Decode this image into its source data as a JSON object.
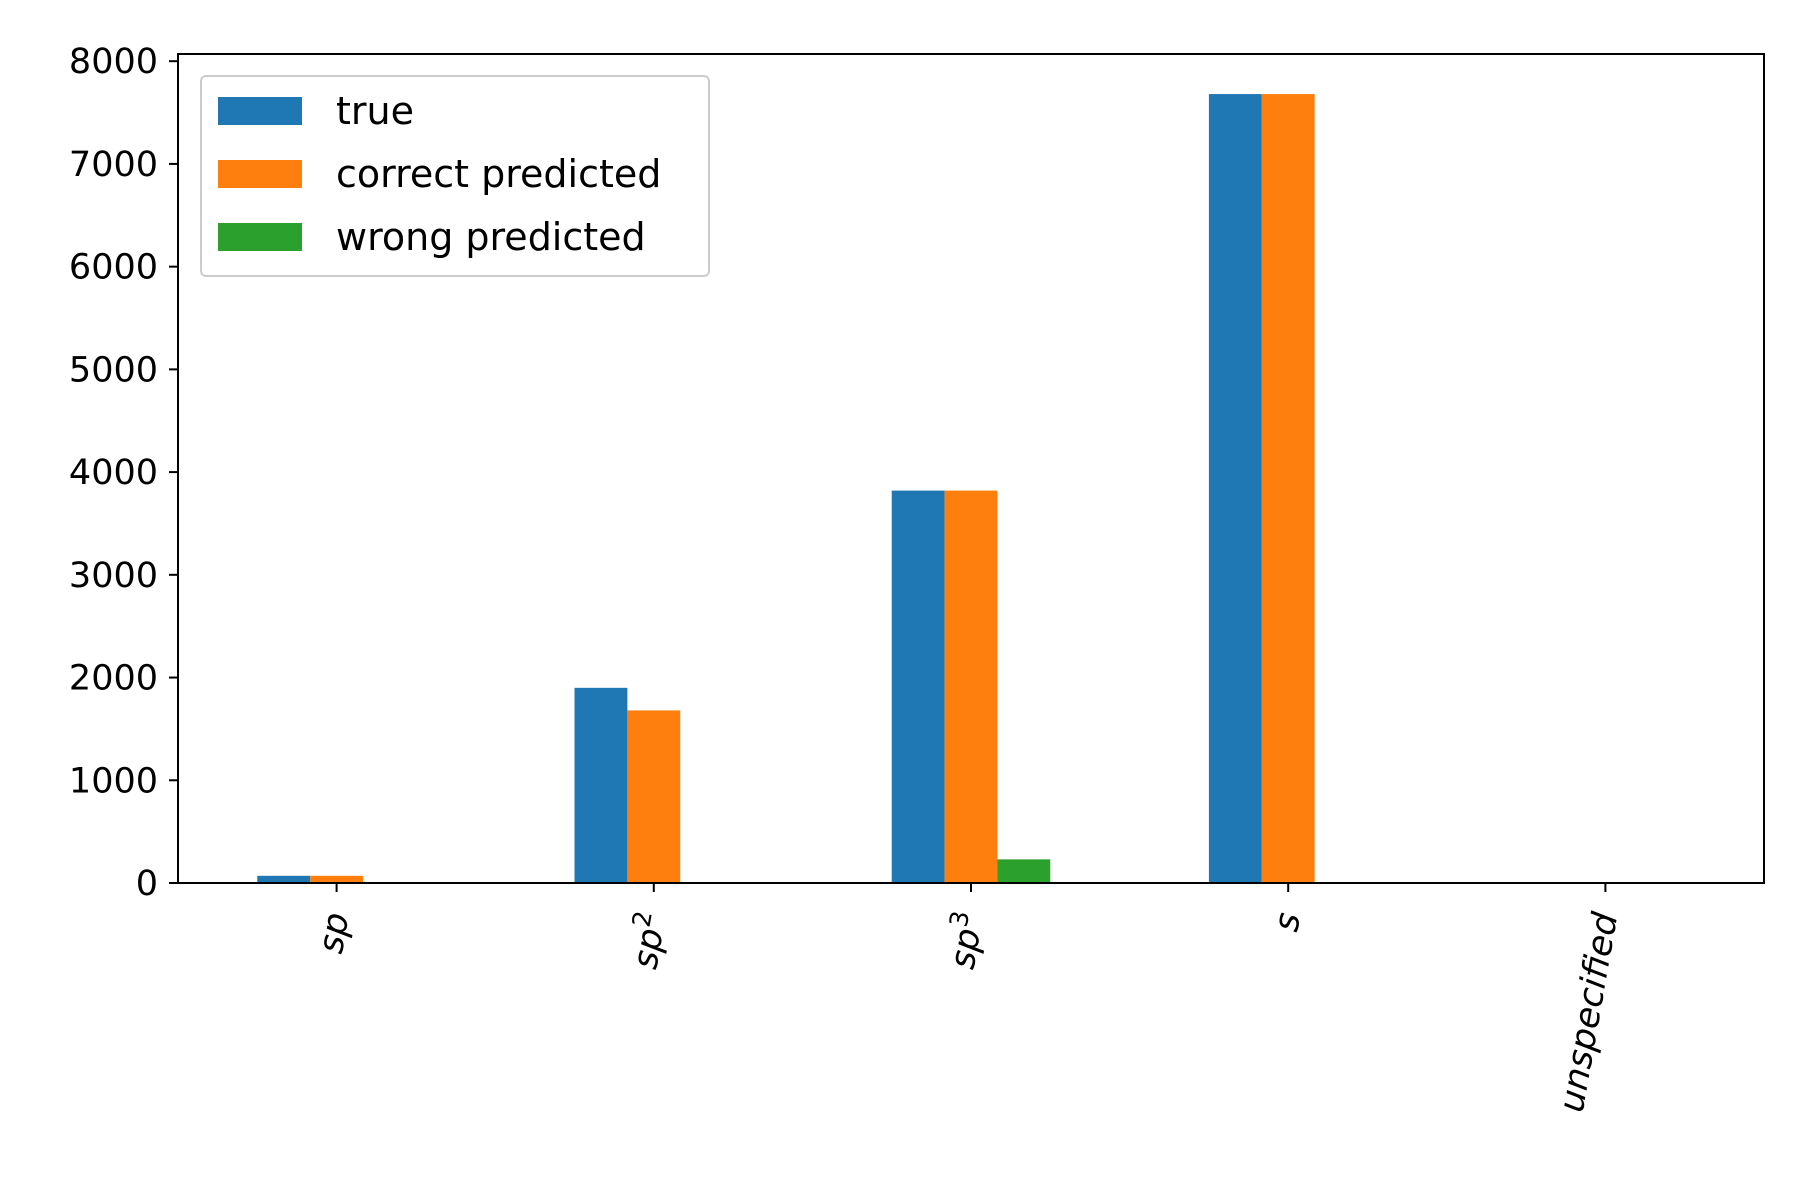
{
  "chart_data": {
    "type": "bar",
    "categories": [
      "sp",
      "sp²",
      "sp³",
      "s",
      "unspecified"
    ],
    "category_labels": [
      {
        "base": "sp",
        "sup": ""
      },
      {
        "base": "sp",
        "sup": "2"
      },
      {
        "base": "sp",
        "sup": "3"
      },
      {
        "base": "s",
        "sup": ""
      },
      {
        "base": "unspecified",
        "sup": ""
      }
    ],
    "series": [
      {
        "name": "true",
        "color": "#1f77b4",
        "values": [
          70,
          1900,
          3820,
          7680,
          0
        ]
      },
      {
        "name": "correct predicted",
        "color": "#ff7f0e",
        "values": [
          70,
          1680,
          3820,
          7680,
          0
        ]
      },
      {
        "name": "wrong predicted",
        "color": "#2ca02c",
        "values": [
          0,
          0,
          230,
          0,
          0
        ]
      }
    ],
    "title": "",
    "xlabel": "",
    "ylabel": "",
    "ylim": [
      0,
      8070
    ],
    "yticks": [
      0,
      1000,
      2000,
      3000,
      4000,
      5000,
      6000,
      7000,
      8000
    ],
    "grid": false,
    "legend_position": "top-left"
  }
}
